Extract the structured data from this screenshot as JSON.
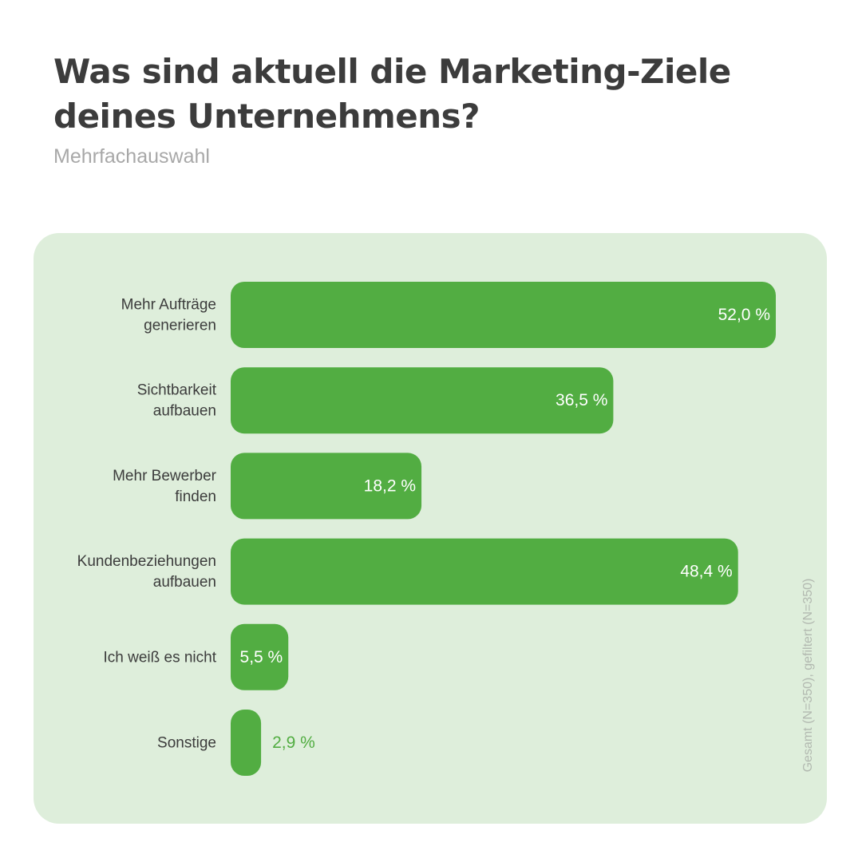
{
  "header": {
    "title": "Was sind aktuell die Marketing-Ziele deines Unternehmens?",
    "subtitle": "Mehrfachauswahl"
  },
  "footnote": "Gesamt (N=350), gefiltert (N=350)",
  "colors": {
    "bar": "#52ad42",
    "panel": "#deeedb",
    "value_inside": "#ffffff",
    "value_outside": "#52ad42"
  },
  "chart_data": {
    "type": "bar",
    "orientation": "horizontal",
    "unit": "%",
    "categories": [
      [
        "Mehr Aufträge",
        "generieren"
      ],
      [
        "Sichtbarkeit",
        "aufbauen"
      ],
      [
        "Mehr Bewerber",
        "finden"
      ],
      [
        "Kundenbeziehungen",
        "aufbauen"
      ],
      [
        "Ich weiß es nicht"
      ],
      [
        "Sonstige"
      ]
    ],
    "values": [
      52.0,
      36.5,
      18.2,
      48.4,
      5.5,
      2.9
    ],
    "value_labels": [
      "52,0 %",
      "36,5 %",
      "18,2 %",
      "48,4 %",
      "5,5 %",
      "2,9 %"
    ],
    "xlim": [
      0,
      52.0
    ],
    "grid": false,
    "legend": "none"
  }
}
